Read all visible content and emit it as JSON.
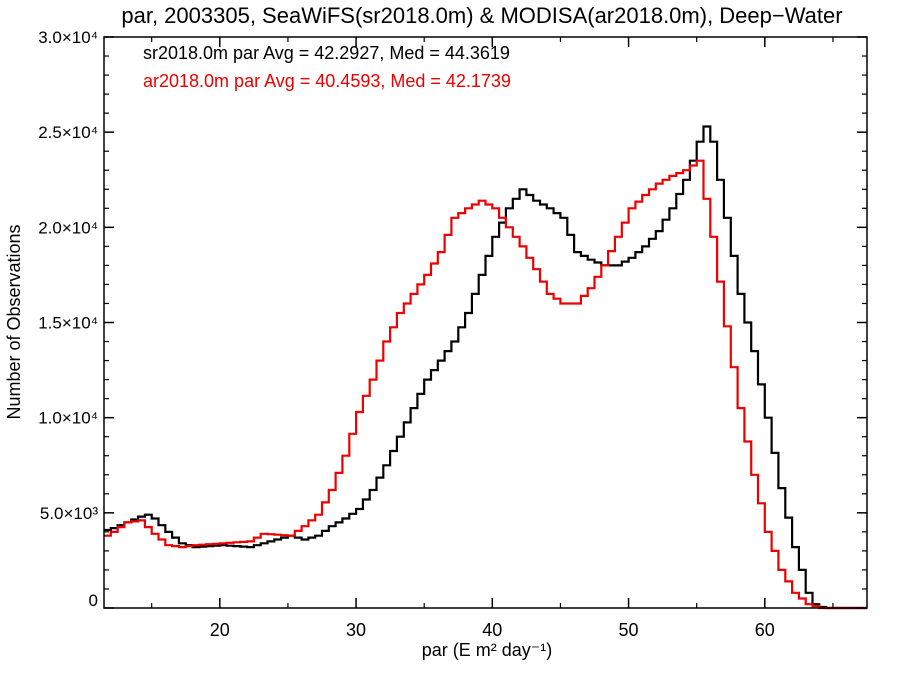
{
  "chart_data": {
    "type": "line",
    "title": "par, 2003305, SeaWiFS(sr2018.0m) & MODISA(ar2018.0m), Deep−Water",
    "xlabel": "par (E m² day⁻¹)",
    "ylabel": "Number of Observations",
    "xlim": [
      11.5,
      67.5
    ],
    "ylim": [
      0,
      30000
    ],
    "x_ticks": [
      20,
      30,
      40,
      50,
      60
    ],
    "y_ticks": [
      {
        "value": 0,
        "label": "0"
      },
      {
        "value": 5000,
        "label": "5.0×10³"
      },
      {
        "value": 10000,
        "label": "1.0×10⁴"
      },
      {
        "value": 15000,
        "label": "1.5×10⁴"
      },
      {
        "value": 20000,
        "label": "2.0×10⁴"
      },
      {
        "value": 25000,
        "label": "2.5×10⁴"
      },
      {
        "value": 30000,
        "label": "3.0×10⁴"
      }
    ],
    "grid": false,
    "legend_position": "top-left",
    "annotations": [
      {
        "text": "sr2018.0m par Avg = 42.2927, Med = 44.3619",
        "color": "#000000"
      },
      {
        "text": "ar2018.0m par Avg = 40.4593, Med = 42.1739",
        "color": "#ee0000"
      }
    ],
    "series": [
      {
        "color": "#000000",
        "x": [
          11.5,
          12,
          13,
          14,
          14.5,
          15,
          16,
          17,
          18,
          20,
          22,
          24,
          25,
          26,
          27,
          28,
          29,
          30,
          31,
          32,
          33,
          34,
          35,
          36,
          37,
          38,
          39,
          40,
          41,
          42,
          43,
          44,
          45,
          46,
          47,
          48,
          49,
          50,
          51,
          52,
          53,
          54,
          55,
          55.5,
          56,
          57,
          58,
          59,
          60,
          61,
          62,
          63,
          63.5,
          64,
          64.5,
          65,
          67.5
        ],
        "y": [
          4100,
          4200,
          4500,
          4800,
          4900,
          4700,
          4000,
          3400,
          3200,
          3300,
          3200,
          3600,
          3800,
          3600,
          3800,
          4300,
          4700,
          5200,
          6200,
          7500,
          9000,
          10500,
          12000,
          13000,
          14000,
          15500,
          17500,
          19500,
          21000,
          22000,
          21400,
          21000,
          20500,
          18700,
          18300,
          18000,
          18000,
          18400,
          19000,
          19800,
          21000,
          22500,
          24500,
          25300,
          24500,
          20500,
          16500,
          13500,
          10000,
          6300,
          3200,
          800,
          200,
          50,
          0,
          0,
          0
        ]
      },
      {
        "color": "#ee0000",
        "x": [
          11.5,
          12,
          13,
          14,
          15,
          16,
          17,
          18,
          20,
          22,
          23,
          24,
          25,
          26,
          27,
          28,
          29,
          30,
          31,
          32,
          33,
          34,
          35,
          36,
          37,
          38,
          39,
          40,
          41,
          42,
          43,
          44,
          45,
          46,
          47,
          48,
          49,
          50,
          51,
          52,
          53,
          54,
          55,
          56,
          57,
          58,
          59,
          60,
          61,
          62,
          63,
          64,
          67.5
        ],
        "y": [
          3800,
          4000,
          4500,
          4600,
          3900,
          3300,
          3200,
          3300,
          3400,
          3500,
          3900,
          3850,
          3800,
          4300,
          4900,
          6200,
          8000,
          10300,
          12000,
          14000,
          15500,
          16500,
          17500,
          18700,
          20500,
          21000,
          21400,
          21000,
          20000,
          19000,
          17800,
          16500,
          16000,
          16000,
          16800,
          18000,
          19500,
          21000,
          21700,
          22300,
          22700,
          23000,
          23500,
          19500,
          14800,
          10500,
          7000,
          4000,
          2000,
          800,
          200,
          0,
          0
        ]
      }
    ]
  }
}
